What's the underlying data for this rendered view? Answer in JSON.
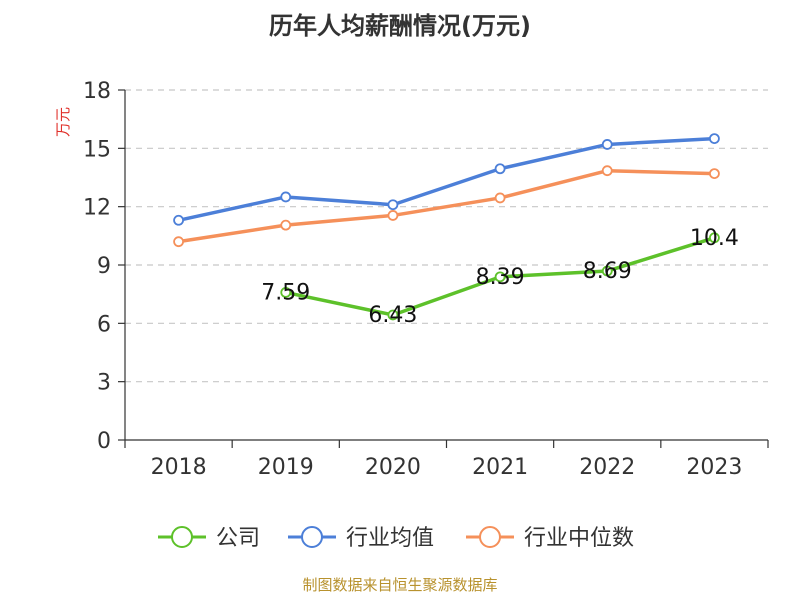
{
  "chart_data": {
    "type": "line",
    "title": "历年人均薪酬情况(万元)",
    "ylabel": "万元",
    "xlabel": "",
    "categories": [
      "2018",
      "2019",
      "2020",
      "2021",
      "2022",
      "2023"
    ],
    "ylim": [
      0,
      18
    ],
    "yticks": [
      0,
      3,
      6,
      9,
      12,
      15,
      18
    ],
    "grid": true,
    "legend_position": "bottom",
    "series": [
      {
        "name": "公司",
        "color": "#5dc12a",
        "values": [
          null,
          7.59,
          6.43,
          8.39,
          8.69,
          10.4
        ],
        "labels": [
          "",
          "7.59",
          "6.43",
          "8.39",
          "8.69",
          "10.4"
        ]
      },
      {
        "name": "行业均值",
        "color": "#4c7fd8",
        "values": [
          11.3,
          12.5,
          12.1,
          13.95,
          15.2,
          15.5
        ]
      },
      {
        "name": "行业中位数",
        "color": "#f5905a",
        "values": [
          10.2,
          11.05,
          11.55,
          12.45,
          13.85,
          13.7
        ]
      }
    ]
  },
  "source_text": "制图数据来自恒生聚源数据库"
}
